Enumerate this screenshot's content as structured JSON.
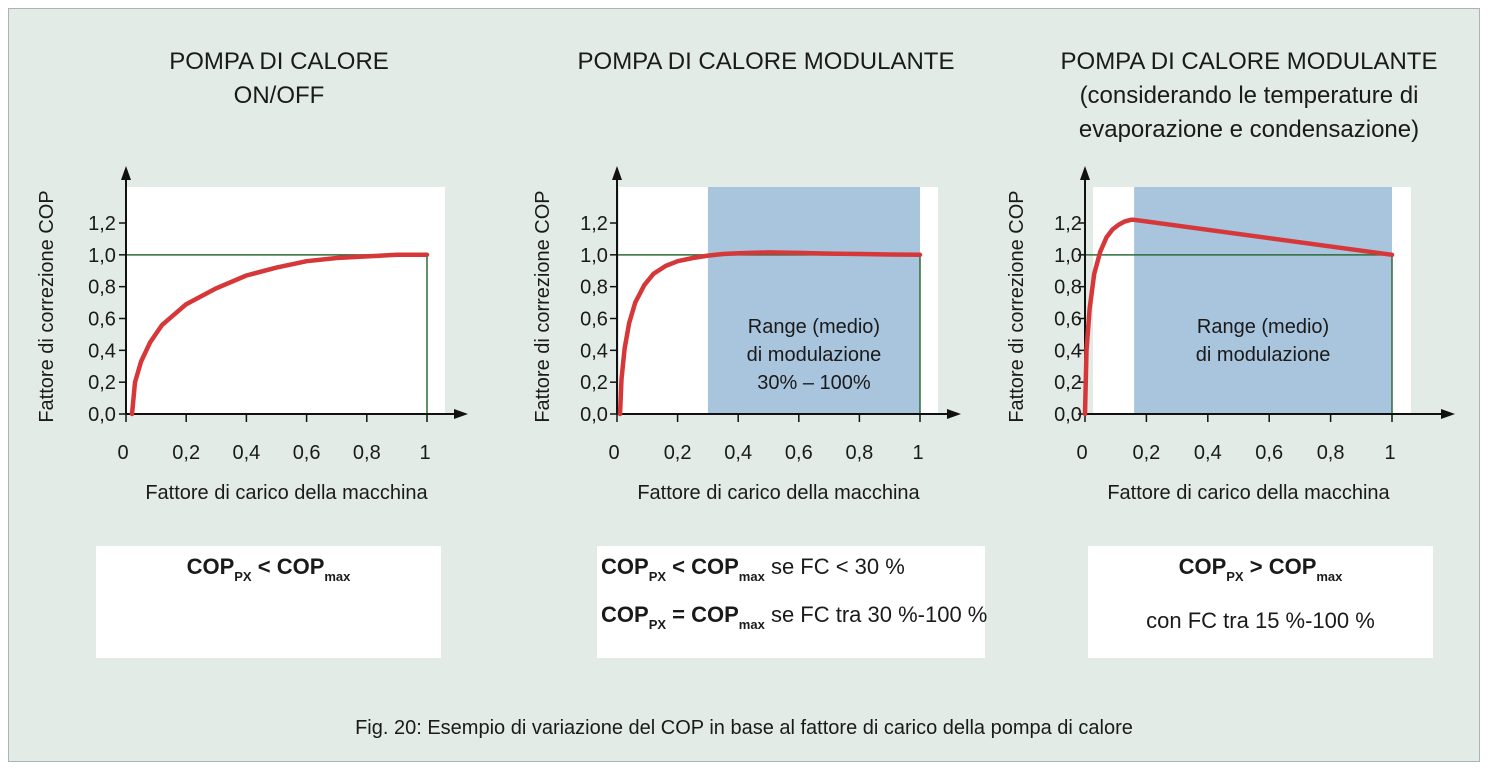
{
  "caption": "Fig. 20: Esempio di variazione del COP in base al fattore di carico della pompa di calore",
  "colors": {
    "background": "#e2ebe6",
    "curve": "#d6383a",
    "range": "#a9c4dd",
    "reference": "#2f6b3a",
    "axis": "#111111"
  },
  "chart_data": [
    {
      "type": "line",
      "title": [
        "POMPA DI CALORE",
        "ON/OFF"
      ],
      "xlabel": "Fattore di carico della macchina",
      "ylabel": "Fattore di correzione COP",
      "xticks": [
        "0",
        "0,2",
        "0,4",
        "0,6",
        "0,8",
        "1"
      ],
      "yticks": [
        "0,0",
        "0,2",
        "0,4",
        "0,6",
        "0,8",
        "1,0",
        "1,2"
      ],
      "xlim": [
        0,
        1
      ],
      "ylim": [
        0,
        1.2
      ],
      "reference_line": 1.0,
      "series": [
        {
          "x": [
            0.02,
            0.03,
            0.05,
            0.08,
            0.12,
            0.2,
            0.3,
            0.4,
            0.5,
            0.6,
            0.7,
            0.8,
            0.9,
            1.0
          ],
          "y": [
            0.0,
            0.2,
            0.33,
            0.45,
            0.56,
            0.69,
            0.79,
            0.87,
            0.92,
            0.96,
            0.98,
            0.99,
            1.0,
            1.0
          ]
        }
      ],
      "range": null
    },
    {
      "type": "line",
      "title": [
        "POMPA DI CALORE MODULANTE"
      ],
      "xlabel": "Fattore di carico della macchina",
      "ylabel": "Fattore di correzione COP",
      "xticks": [
        "0",
        "0,2",
        "0,4",
        "0,6",
        "0,8",
        "1"
      ],
      "yticks": [
        "0,0",
        "0,2",
        "0,4",
        "0,6",
        "0,8",
        "1,0",
        "1,2"
      ],
      "xlim": [
        0,
        1
      ],
      "ylim": [
        0,
        1.2
      ],
      "reference_line": 1.0,
      "series": [
        {
          "x": [
            0.01,
            0.015,
            0.025,
            0.04,
            0.06,
            0.09,
            0.12,
            0.16,
            0.2,
            0.25,
            0.3,
            0.35,
            0.4,
            0.5,
            0.6,
            0.7,
            0.8,
            0.9,
            1.0
          ],
          "y": [
            0.0,
            0.22,
            0.41,
            0.57,
            0.7,
            0.81,
            0.88,
            0.93,
            0.96,
            0.98,
            0.995,
            1.005,
            1.01,
            1.015,
            1.012,
            1.008,
            1.005,
            1.002,
            1.0
          ]
        }
      ],
      "range": {
        "from": 0.3,
        "to": 1.0,
        "label": [
          "Range (medio)",
          "di modulazione",
          "30% – 100%"
        ]
      }
    },
    {
      "type": "line",
      "title": [
        "POMPA DI CALORE MODULANTE",
        "(considerando le temperature di",
        "evaporazione e condensazione)"
      ],
      "xlabel": "Fattore di carico della macchina",
      "ylabel": "Fattore di correzione COP",
      "xticks": [
        "0",
        "0,2",
        "0,4",
        "0,6",
        "0,8",
        "1"
      ],
      "yticks": [
        "0,0",
        "0,2",
        "0,4",
        "0,6",
        "0,8",
        "1,0",
        "1,2"
      ],
      "xlim": [
        0,
        1
      ],
      "ylim": [
        0,
        1.2
      ],
      "reference_line": 1.0,
      "series": [
        {
          "x": [
            0.0,
            0.005,
            0.015,
            0.03,
            0.05,
            0.07,
            0.09,
            0.11,
            0.13,
            0.15,
            0.16,
            1.0
          ],
          "y": [
            0.0,
            0.4,
            0.66,
            0.88,
            1.02,
            1.11,
            1.16,
            1.19,
            1.21,
            1.22,
            1.22,
            1.0
          ]
        }
      ],
      "range": {
        "from": 0.16,
        "to": 1.0,
        "label": [
          "Range (medio)",
          "di modulazione"
        ]
      }
    }
  ],
  "formulas": [
    {
      "rows": [
        [
          {
            "t": "COP",
            "s": "PX"
          },
          {
            "t": " < "
          },
          {
            "t": "COP",
            "s": "max"
          }
        ]
      ]
    },
    {
      "rows": [
        [
          {
            "t": "COP",
            "s": "PX"
          },
          {
            "t": " < "
          },
          {
            "t": "COP",
            "s": "max"
          },
          {
            "t": " se FC < 30 %",
            "n": true
          }
        ],
        [
          {
            "t": "COP",
            "s": "PX"
          },
          {
            "t": " = "
          },
          {
            "t": "COP",
            "s": "max"
          },
          {
            "t": " se FC tra 30 %-100 %",
            "n": true
          }
        ]
      ]
    },
    {
      "rows": [
        [
          {
            "t": "COP",
            "s": "PX"
          },
          {
            "t": " > "
          },
          {
            "t": "COP",
            "s": "max"
          }
        ],
        [
          {
            "t": "con FC tra 15 %-100 %",
            "n": true
          }
        ]
      ]
    }
  ]
}
